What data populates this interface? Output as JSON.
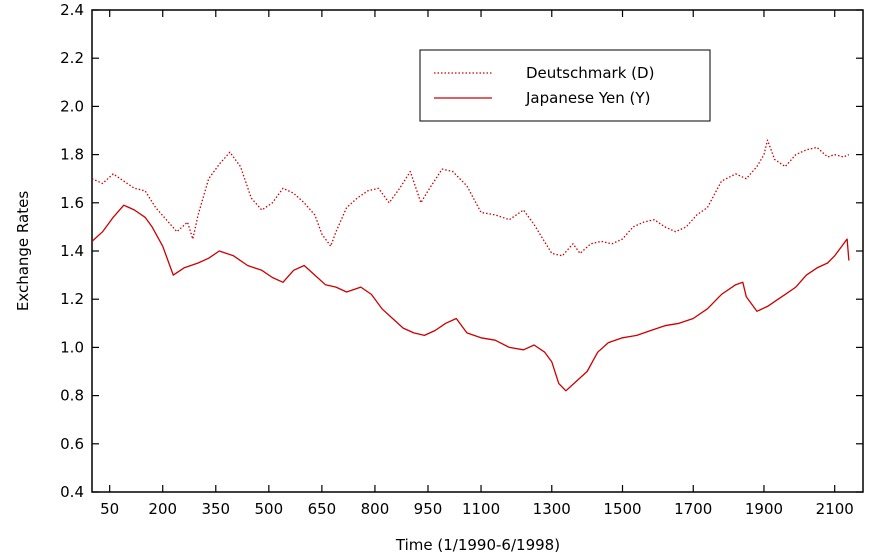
{
  "chart_data": {
    "type": "line",
    "xlabel": "Time (1/1990-6/1998)",
    "ylabel": "Exchange Rates",
    "xlim": [
      0,
      2180
    ],
    "ylim": [
      0.4,
      2.4
    ],
    "x_ticks": [
      50,
      200,
      350,
      500,
      650,
      800,
      950,
      1100,
      1300,
      1500,
      1700,
      1900,
      2100
    ],
    "y_ticks": [
      0.4,
      0.6,
      0.8,
      1.0,
      1.2,
      1.4,
      1.6,
      1.8,
      2.0,
      2.2,
      2.4
    ],
    "y_tick_labels": [
      "0.4",
      "0.6",
      "0.8",
      "1.0",
      "1.2",
      "1.4",
      "1.6",
      "1.8",
      "2.0",
      "2.2",
      "2.4"
    ],
    "grid": false,
    "legend_position": "top-right",
    "series": [
      {
        "name": "Deutschmark (D)",
        "style": "dotted",
        "color": "#cc0000",
        "x": [
          0,
          30,
          60,
          90,
          120,
          150,
          180,
          210,
          240,
          270,
          285,
          300,
          330,
          360,
          390,
          420,
          450,
          480,
          510,
          540,
          570,
          600,
          630,
          650,
          675,
          690,
          720,
          750,
          780,
          810,
          840,
          870,
          900,
          930,
          950,
          990,
          1020,
          1060,
          1100,
          1140,
          1180,
          1220,
          1250,
          1275,
          1300,
          1330,
          1360,
          1380,
          1410,
          1440,
          1470,
          1500,
          1530,
          1560,
          1590,
          1620,
          1650,
          1680,
          1710,
          1740,
          1780,
          1820,
          1850,
          1880,
          1900,
          1910,
          1930,
          1960,
          1990,
          2020,
          2050,
          2080,
          2100,
          2125,
          2140
        ],
        "y": [
          1.7,
          1.68,
          1.72,
          1.69,
          1.66,
          1.65,
          1.58,
          1.53,
          1.48,
          1.52,
          1.45,
          1.55,
          1.7,
          1.76,
          1.81,
          1.75,
          1.62,
          1.57,
          1.6,
          1.66,
          1.64,
          1.6,
          1.55,
          1.47,
          1.42,
          1.48,
          1.58,
          1.62,
          1.65,
          1.66,
          1.6,
          1.66,
          1.73,
          1.6,
          1.65,
          1.74,
          1.73,
          1.67,
          1.56,
          1.55,
          1.53,
          1.57,
          1.51,
          1.45,
          1.39,
          1.38,
          1.43,
          1.39,
          1.43,
          1.44,
          1.43,
          1.45,
          1.5,
          1.52,
          1.53,
          1.5,
          1.48,
          1.5,
          1.55,
          1.58,
          1.69,
          1.72,
          1.7,
          1.75,
          1.8,
          1.86,
          1.78,
          1.75,
          1.8,
          1.82,
          1.83,
          1.79,
          1.8,
          1.79,
          1.8
        ]
      },
      {
        "name": "Japanese Yen (Y)",
        "style": "solid",
        "color": "#cc0000",
        "x": [
          0,
          30,
          60,
          90,
          120,
          150,
          170,
          200,
          230,
          260,
          300,
          330,
          360,
          400,
          440,
          480,
          510,
          540,
          570,
          600,
          630,
          660,
          690,
          720,
          760,
          790,
          820,
          850,
          880,
          910,
          940,
          970,
          1000,
          1030,
          1060,
          1100,
          1140,
          1180,
          1220,
          1250,
          1280,
          1300,
          1320,
          1340,
          1370,
          1400,
          1430,
          1460,
          1500,
          1540,
          1580,
          1620,
          1660,
          1700,
          1740,
          1780,
          1820,
          1840,
          1850,
          1880,
          1910,
          1940,
          1960,
          1990,
          2020,
          2050,
          2080,
          2100,
          2120,
          2135,
          2140
        ],
        "y": [
          1.44,
          1.48,
          1.54,
          1.59,
          1.57,
          1.54,
          1.5,
          1.42,
          1.3,
          1.33,
          1.35,
          1.37,
          1.4,
          1.38,
          1.34,
          1.32,
          1.29,
          1.27,
          1.32,
          1.34,
          1.3,
          1.26,
          1.25,
          1.23,
          1.25,
          1.22,
          1.16,
          1.12,
          1.08,
          1.06,
          1.05,
          1.07,
          1.1,
          1.12,
          1.06,
          1.04,
          1.03,
          1.0,
          0.99,
          1.01,
          0.98,
          0.94,
          0.85,
          0.82,
          0.86,
          0.9,
          0.98,
          1.02,
          1.04,
          1.05,
          1.07,
          1.09,
          1.1,
          1.12,
          1.16,
          1.22,
          1.26,
          1.27,
          1.21,
          1.15,
          1.17,
          1.2,
          1.22,
          1.25,
          1.3,
          1.33,
          1.35,
          1.38,
          1.42,
          1.45,
          1.36
        ]
      }
    ]
  },
  "colors": {
    "series": "#cc0000",
    "axis": "#000000"
  }
}
